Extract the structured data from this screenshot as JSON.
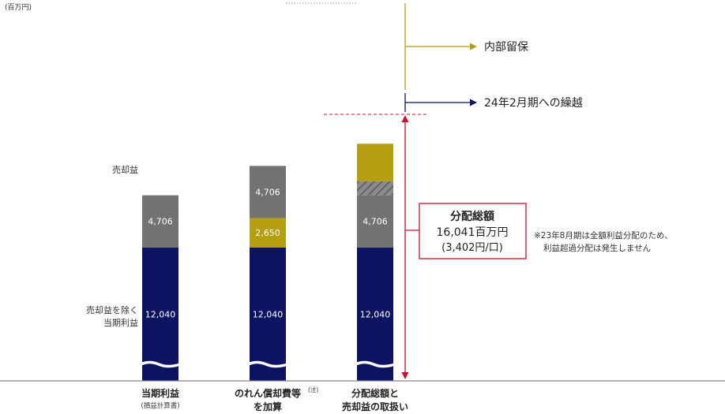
{
  "unit_label": "(百万円)",
  "colors": {
    "navy": "#0c1461",
    "gray": "#727272",
    "gold": "#b59e12",
    "red": "#c8102e",
    "hatch": "#6b6b6b",
    "axis": "#888888"
  },
  "chart_data": {
    "type": "bar",
    "stacked": true,
    "categories": [
      {
        "line1": "当期利益",
        "line2": "(損益計算書)"
      },
      {
        "line1": "のれん償却費等",
        "note": "(注)",
        "line2": "を加算"
      },
      {
        "line1": "分配総額と",
        "line2": "売却益の取扱い"
      }
    ],
    "segments": [
      {
        "category": 0,
        "value": 12040,
        "label": "12,040",
        "color": "navy"
      },
      {
        "category": 0,
        "value": 4706,
        "label": "4,706",
        "color": "gray"
      },
      {
        "category": 1,
        "value": 12040,
        "label": "12,040",
        "color": "navy"
      },
      {
        "category": 1,
        "value": 2650,
        "label": "2,650",
        "color": "gold"
      },
      {
        "category": 1,
        "value": 4706,
        "label": "4,706",
        "color": "gray"
      },
      {
        "category": 2,
        "value": 12040,
        "label": "12,040",
        "color": "navy"
      },
      {
        "category": 2,
        "value": 4706,
        "label": "4,706",
        "color": "gray"
      },
      {
        "category": 2,
        "value": 1280,
        "label": "",
        "color": "hatch"
      },
      {
        "category": 2,
        "value": 3370,
        "label": "",
        "color": "gold"
      }
    ],
    "left_labels": {
      "gain": "売却益",
      "income_line1": "売却益を除く",
      "income_line2": "当期利益"
    },
    "annotations": {
      "retained": "内部留保",
      "carry": "24年2月期への繰越",
      "dist_title": "分配総額",
      "dist_amount": "16,041百万円",
      "dist_per_unit": "(3,402円/口)",
      "note_line1": "※23年8月期は全額利益分配のため、",
      "note_line2": "利益超過分配は発生しません"
    }
  }
}
